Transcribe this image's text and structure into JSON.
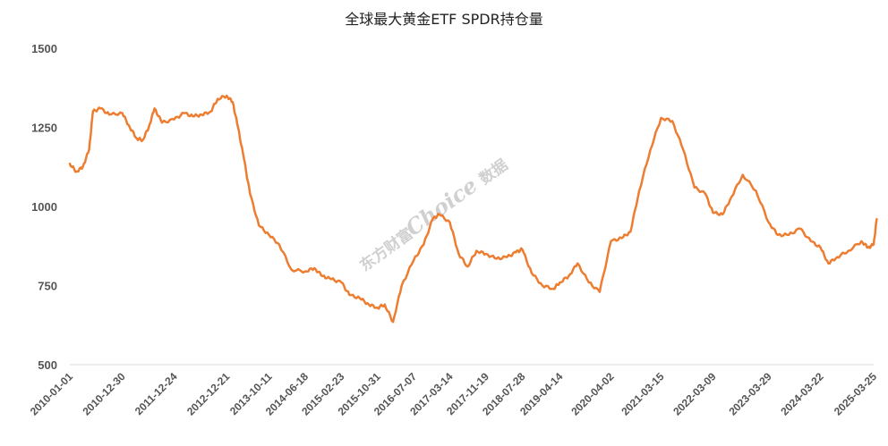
{
  "chart_data": {
    "type": "line",
    "title": "全球最大黄金ETF SPDR持仓量",
    "xlabel": "",
    "ylabel": "",
    "ylim": [
      500,
      1500
    ],
    "yticks": [
      500,
      750,
      1000,
      1250,
      1500
    ],
    "grid": false,
    "legend": "none",
    "color": "#ED7D31",
    "xticks": [
      "2010-01-01",
      "2010-12-30",
      "2011-12-24",
      "2012-12-21",
      "2013-10-11",
      "2014-06-18",
      "2015-02-23",
      "2015-10-31",
      "2016-07-07",
      "2017-03-14",
      "2017-11-19",
      "2018-07-28",
      "2019-04-14",
      "2020-04-02",
      "2021-03-15",
      "2022-03-09",
      "2023-03-29",
      "2024-03-22",
      "2025-03-25"
    ],
    "series": [
      {
        "x": [
          "2010-01-01",
          "2010-02-15",
          "2010-04-01",
          "2010-05-15",
          "2010-06-10",
          "2010-08-01",
          "2010-10-01",
          "2010-12-30",
          "2011-02-20",
          "2011-04-10",
          "2011-05-20",
          "2011-07-01",
          "2011-08-10",
          "2011-10-01",
          "2011-12-24",
          "2012-03-01",
          "2012-05-01",
          "2012-07-01",
          "2012-09-01",
          "2012-10-20",
          "2012-12-21",
          "2013-02-01",
          "2013-03-10",
          "2013-04-20",
          "2013-06-01",
          "2013-08-01",
          "2013-10-11",
          "2013-12-20",
          "2014-03-15",
          "2014-06-18",
          "2014-08-20",
          "2014-10-15",
          "2014-12-15",
          "2015-02-23",
          "2015-04-20",
          "2015-07-01",
          "2015-09-01",
          "2015-10-31",
          "2015-12-20",
          "2016-02-15",
          "2016-04-15",
          "2016-07-07",
          "2016-09-15",
          "2016-11-15",
          "2016-12-30",
          "2017-03-14",
          "2017-05-15",
          "2017-07-15",
          "2017-09-15",
          "2017-11-19",
          "2018-02-01",
          "2018-04-15",
          "2018-06-15",
          "2018-07-28",
          "2018-10-01",
          "2018-12-15",
          "2019-03-01",
          "2019-04-14",
          "2019-06-15",
          "2019-08-15",
          "2019-11-01",
          "2020-01-15",
          "2020-04-02",
          "2020-06-15",
          "2020-08-15",
          "2020-10-15",
          "2020-12-31",
          "2021-03-15",
          "2021-06-01",
          "2021-08-15",
          "2021-11-01",
          "2022-01-15",
          "2022-03-09",
          "2022-05-15",
          "2022-07-15",
          "2022-10-01",
          "2022-12-31",
          "2023-03-29",
          "2023-06-01",
          "2023-08-15",
          "2023-11-01",
          "2024-01-15",
          "2024-03-22",
          "2024-05-15",
          "2024-07-15",
          "2024-10-01",
          "2024-12-31",
          "2025-02-15",
          "2025-03-25",
          "2025-04-15"
        ],
        "y": [
          1135,
          1110,
          1125,
          1180,
          1300,
          1310,
          1290,
          1295,
          1250,
          1215,
          1210,
          1250,
          1310,
          1265,
          1275,
          1295,
          1285,
          1290,
          1300,
          1340,
          1350,
          1330,
          1250,
          1150,
          1040,
          940,
          910,
          880,
          800,
          795,
          805,
          780,
          770,
          760,
          720,
          710,
          690,
          680,
          690,
          635,
          750,
          830,
          880,
          960,
          975,
          950,
          850,
          810,
          860,
          850,
          835,
          840,
          855,
          865,
          790,
          750,
          740,
          760,
          780,
          820,
          760,
          730,
          890,
          900,
          920,
          1050,
          1180,
          1280,
          1270,
          1180,
          1060,
          1040,
          980,
          975,
          1030,
          1100,
          1050,
          950,
          910,
          910,
          930,
          890,
          870,
          820,
          840,
          860,
          890,
          870,
          880,
          960
        ]
      }
    ],
    "watermark": {
      "cn_left": "东方财富",
      "en": "Choice",
      "cn_right": "数据"
    }
  }
}
